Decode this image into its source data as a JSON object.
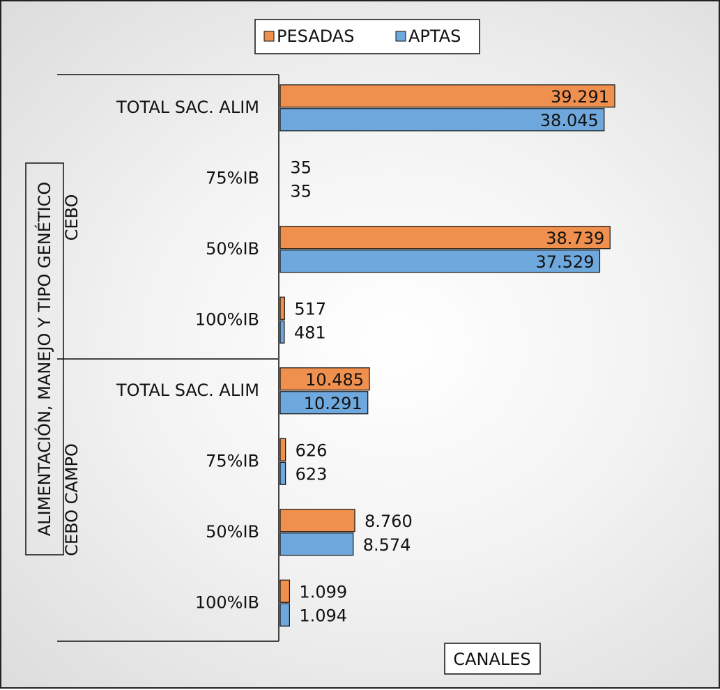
{
  "chart_data": {
    "type": "bar",
    "orientation": "horizontal",
    "legend": {
      "position": "top",
      "entries": [
        "PESADAS",
        "APTAS"
      ]
    },
    "xlabel": "CANALES",
    "ylabel": "ALIMENTACIÓN, MANEJO Y TIPO GENÉTICO",
    "colors": {
      "PESADAS": "#F0904F",
      "APTAS": "#6FA8DC"
    },
    "groups": [
      {
        "name": "CEBO",
        "categories": [
          "TOTAL SAC. ALIM",
          "75%IB",
          "50%IB",
          "100%IB"
        ],
        "series": [
          {
            "name": "PESADAS",
            "values": [
              39291,
              35,
              38739,
              517
            ],
            "labels": [
              "39.291",
              "35",
              "38.739",
              "517"
            ]
          },
          {
            "name": "APTAS",
            "values": [
              38045,
              35,
              37529,
              481
            ],
            "labels": [
              "38.045",
              "35",
              "37.529",
              "481"
            ]
          }
        ]
      },
      {
        "name": "CEBO CAMPO",
        "categories": [
          "TOTAL SAC. ALIM",
          "75%IB",
          "50%IB",
          "100%IB"
        ],
        "series": [
          {
            "name": "PESADAS",
            "values": [
              10485,
              626,
              8760,
              1099
            ],
            "labels": [
              "10.485",
              "626",
              "8.760",
              "1.099"
            ]
          },
          {
            "name": "APTAS",
            "values": [
              10291,
              623,
              8574,
              1094
            ],
            "labels": [
              "10.291",
              "623",
              "8.574",
              "1.094"
            ]
          }
        ]
      }
    ],
    "xlim": [
      0,
      41000
    ]
  }
}
